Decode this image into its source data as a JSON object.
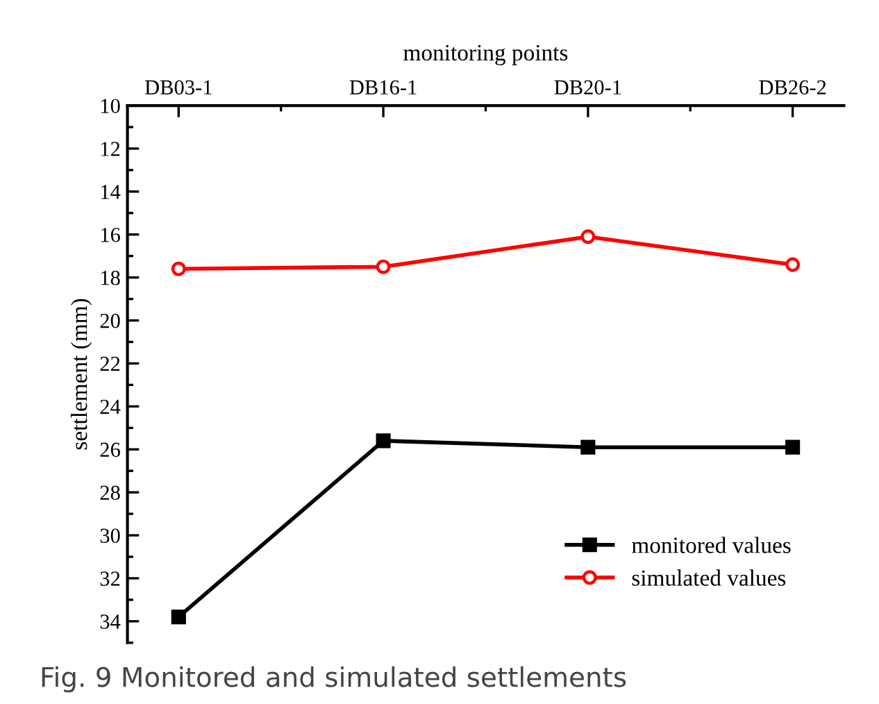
{
  "chart_data": {
    "type": "line",
    "xlabel": "monitoring points",
    "ylabel": "settlement (mm)",
    "categories": [
      "DB03-1",
      "DB16-1",
      "DB20-1",
      "DB26-2"
    ],
    "series": [
      {
        "name": "monitored values",
        "color": "#000000",
        "marker": "square",
        "values": [
          33.8,
          25.6,
          25.9,
          25.9
        ]
      },
      {
        "name": "simulated values",
        "color": "#ff0000",
        "marker": "circle",
        "values": [
          17.6,
          17.5,
          16.1,
          17.4
        ]
      }
    ],
    "ylim": [
      35,
      10
    ],
    "yticks": [
      10,
      12,
      14,
      16,
      18,
      20,
      22,
      24,
      26,
      28,
      30,
      32,
      34
    ],
    "grid": false,
    "legend": "bottom right",
    "line_style": "solid",
    "annotations": [
      "Fig. 9 Monitored and simulated settlements"
    ]
  }
}
